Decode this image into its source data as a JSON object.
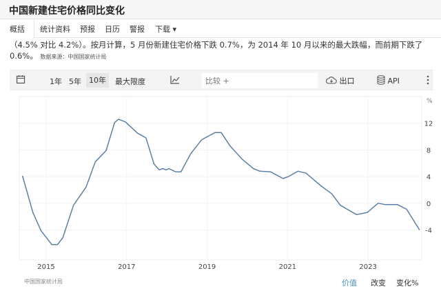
{
  "title": "中国新建住宅价格同比变化",
  "tabs": [
    {
      "label": "概括"
    },
    {
      "label": "统计资料"
    },
    {
      "label": "预报"
    },
    {
      "label": "日历"
    },
    {
      "label": "警报"
    },
    {
      "label": "下载 ▾"
    }
  ],
  "body": {
    "text": "（4.5% 对比 4.2%）。按月计算，5 月份新建住宅价格下跌 0.7%，为 2014 年 10 月以来的最大跌幅，而前期下跌了 0.6%。",
    "source": "数据来源：中国国家统计局"
  },
  "toolbar": {
    "ranges": [
      "1年",
      "5年",
      "10年",
      "最大限度"
    ],
    "selected_range": "10年",
    "compare_placeholder": "比较 +",
    "export": "出口",
    "api": "API",
    "icons": [
      "calendar-icon",
      "line-chart-icon",
      "cloud-download-icon",
      "database-icon",
      "more-vertical-icon"
    ]
  },
  "footer": {
    "source": "中国国家统计局",
    "modes": [
      "价值",
      "改变",
      "变化%"
    ],
    "active_mode": "价值"
  },
  "accent_color": "#4a90c8",
  "chart_data": {
    "type": "line",
    "ylabel": "%",
    "xlim": [
      2014.4,
      2024.3
    ],
    "ylim": [
      -8.5,
      16
    ],
    "xticks": [
      2015,
      2017,
      2019,
      2021,
      2023
    ],
    "xtick_labels": [
      "2015",
      "2017",
      "2019",
      "2021",
      "2023"
    ],
    "yticks": [
      12,
      8,
      4,
      0,
      -4
    ],
    "ytick_labels": [
      "12",
      "8",
      "4",
      "0",
      "-4"
    ],
    "grid": true,
    "line_color": "#5b7fa6",
    "x": [
      2014.41,
      2014.67,
      2014.87,
      2015.14,
      2015.28,
      2015.41,
      2015.68,
      2015.99,
      2016.22,
      2016.49,
      2016.7,
      2016.8,
      2016.97,
      2017.27,
      2017.48,
      2017.68,
      2017.81,
      2017.9,
      2017.98,
      2018.05,
      2018.22,
      2018.35,
      2018.59,
      2018.86,
      2019.2,
      2019.35,
      2019.57,
      2019.87,
      2020.15,
      2020.31,
      2020.58,
      2020.89,
      2021.02,
      2021.26,
      2021.46,
      2021.83,
      2022.1,
      2022.31,
      2022.71,
      2022.98,
      2023.25,
      2023.42,
      2023.73,
      2023.96,
      2024.28
    ],
    "y": [
      4.1,
      -1.4,
      -4.1,
      -6.2,
      -6.2,
      -5.2,
      -0.3,
      2.4,
      6.2,
      7.9,
      12.1,
      12.6,
      12.2,
      10.5,
      9.8,
      5.9,
      5.0,
      5.2,
      5.0,
      5.2,
      4.7,
      4.7,
      7.4,
      9.5,
      10.6,
      10.6,
      8.6,
      6.6,
      5.2,
      4.8,
      4.7,
      3.7,
      4.0,
      4.8,
      4.5,
      2.6,
      1.4,
      -0.3,
      -1.7,
      -1.4,
      0.0,
      -0.2,
      -0.2,
      -0.9,
      -4.0
    ]
  }
}
